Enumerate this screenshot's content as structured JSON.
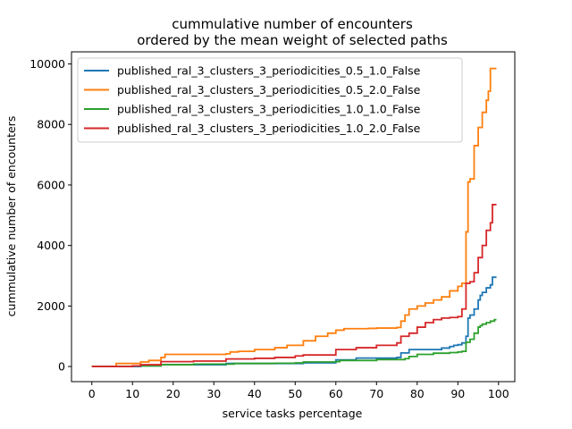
{
  "chart_data": {
    "type": "line",
    "title": "cummulative number of encounters\nordered by the mean weight of selected paths",
    "xlabel": "service tasks percentage",
    "ylabel": "cummulative number of encounters",
    "xlim": [
      -5,
      104
    ],
    "ylim": [
      -500,
      10400
    ],
    "xticks": [
      0,
      10,
      20,
      30,
      40,
      50,
      60,
      70,
      80,
      90,
      100
    ],
    "yticks": [
      0,
      2000,
      4000,
      6000,
      8000,
      10000
    ],
    "grid": false,
    "legend_position": "top-left",
    "series": [
      {
        "name": "published_ral_3_clusters_3_periodicities_0.5_1.0_False",
        "color": "#1f77b4",
        "x": [
          0,
          5,
          12,
          12,
          17,
          17,
          25,
          33,
          33,
          40,
          48,
          52,
          60,
          60,
          65,
          75,
          76,
          78,
          84,
          86,
          88,
          89,
          90,
          91,
          92,
          92.5,
          93,
          94,
          95,
          95.5,
          96,
          97,
          98,
          98.5,
          99.5
        ],
        "y": [
          0,
          0,
          0,
          20,
          20,
          60,
          60,
          60,
          100,
          100,
          100,
          120,
          120,
          220,
          280,
          300,
          450,
          560,
          560,
          610,
          660,
          700,
          720,
          780,
          1000,
          1600,
          1700,
          1900,
          2200,
          2350,
          2450,
          2600,
          2700,
          2950,
          2950
        ]
      },
      {
        "name": "published_ral_3_clusters_3_periodicities_0.5_2.0_False",
        "color": "#ff7f0e",
        "x": [
          0,
          5,
          6,
          12,
          14,
          17,
          18,
          26,
          33,
          34,
          36,
          40,
          45,
          48,
          52,
          55,
          58,
          60,
          62,
          68,
          70,
          75,
          76,
          77,
          78,
          80,
          82,
          84,
          86,
          88,
          90,
          91,
          92,
          92.5,
          93,
          94,
          95,
          96,
          97,
          97.5,
          98,
          98.5,
          99,
          99.5
        ],
        "y": [
          0,
          0,
          100,
          150,
          200,
          300,
          400,
          400,
          420,
          480,
          500,
          560,
          620,
          700,
          850,
          1000,
          1100,
          1200,
          1250,
          1260,
          1270,
          1290,
          1500,
          1700,
          1900,
          2000,
          2100,
          2200,
          2300,
          2500,
          2650,
          2750,
          4450,
          6100,
          6200,
          7300,
          7900,
          8400,
          8800,
          9100,
          9850,
          9850,
          9850,
          9850
        ]
      },
      {
        "name": "published_ral_3_clusters_3_periodicities_1.0_1.0_False",
        "color": "#2ca02c",
        "x": [
          0,
          5,
          10,
          17,
          17,
          25,
          33,
          35,
          40,
          45,
          50,
          52,
          60,
          61,
          70,
          77,
          78,
          80,
          84,
          88,
          90,
          91,
          92,
          93,
          94,
          95,
          95.5,
          96,
          97,
          98,
          99,
          99.5
        ],
        "y": [
          0,
          0,
          20,
          40,
          60,
          80,
          80,
          100,
          100,
          110,
          120,
          150,
          160,
          200,
          230,
          260,
          330,
          400,
          440,
          460,
          480,
          500,
          800,
          900,
          1100,
          1300,
          1350,
          1400,
          1450,
          1500,
          1550,
          1550
        ]
      },
      {
        "name": "published_ral_3_clusters_3_periodicities_1.0_2.0_False",
        "color": "#d62728",
        "x": [
          0,
          5,
          10,
          12,
          17,
          17,
          25,
          33,
          33,
          40,
          45,
          50,
          52,
          60,
          60,
          65,
          70,
          75,
          76,
          78,
          80,
          82,
          84,
          86,
          88,
          90,
          91,
          92,
          93,
          94,
          95,
          96,
          97,
          98,
          98.5,
          99.5
        ],
        "y": [
          0,
          0,
          20,
          60,
          80,
          160,
          180,
          200,
          250,
          270,
          300,
          350,
          380,
          400,
          560,
          620,
          700,
          780,
          1000,
          1100,
          1300,
          1450,
          1550,
          1600,
          1620,
          1650,
          1900,
          2750,
          2800,
          3100,
          3600,
          4000,
          4500,
          4750,
          5350,
          5350
        ]
      }
    ]
  }
}
